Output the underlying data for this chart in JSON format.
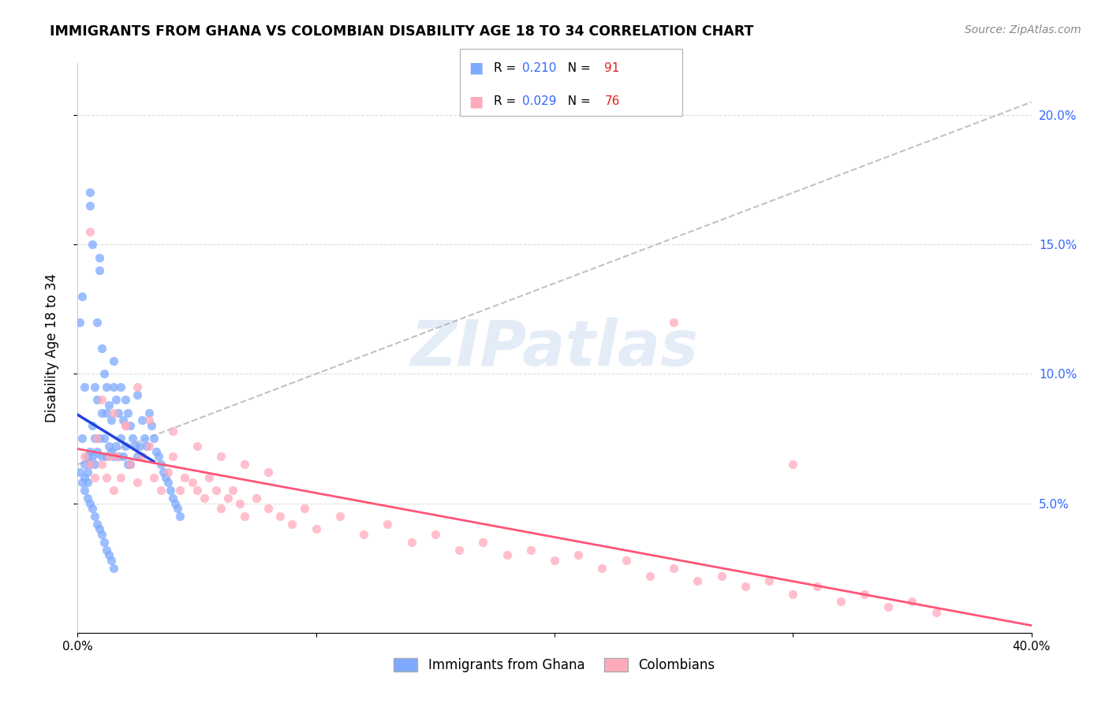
{
  "title": "IMMIGRANTS FROM GHANA VS COLOMBIAN DISABILITY AGE 18 TO 34 CORRELATION CHART",
  "source": "Source: ZipAtlas.com",
  "ylabel": "Disability Age 18 to 34",
  "xlim": [
    0.0,
    0.4
  ],
  "ylim": [
    0.0,
    0.22
  ],
  "xticks": [
    0.0,
    0.1,
    0.2,
    0.3,
    0.4
  ],
  "xticklabels": [
    "0.0%",
    "",
    "",
    "",
    "40.0%"
  ],
  "yticks": [
    0.05,
    0.1,
    0.15,
    0.2
  ],
  "ytick_labels": [
    "5.0%",
    "10.0%",
    "15.0%",
    "20.0%"
  ],
  "ghana_color": "#7eaaff",
  "colombian_color": "#ffaabb",
  "ghana_line_color": "#2244dd",
  "colombian_line_color": "#ff5577",
  "dashed_line_color": "#bbbbbb",
  "R_ghana": 0.21,
  "N_ghana": 91,
  "R_colombian": 0.029,
  "N_colombian": 76,
  "watermark_text": "ZIPatlas",
  "legend_label_ghana": "Immigrants from Ghana",
  "legend_label_colombian": "Colombians",
  "r_color": "#3366ff",
  "n_color": "#dd2222",
  "ghana_x": [
    0.001,
    0.002,
    0.002,
    0.003,
    0.003,
    0.003,
    0.004,
    0.004,
    0.004,
    0.005,
    0.005,
    0.005,
    0.005,
    0.006,
    0.006,
    0.006,
    0.007,
    0.007,
    0.007,
    0.008,
    0.008,
    0.008,
    0.009,
    0.009,
    0.009,
    0.01,
    0.01,
    0.01,
    0.011,
    0.011,
    0.012,
    0.012,
    0.012,
    0.013,
    0.013,
    0.014,
    0.014,
    0.015,
    0.015,
    0.015,
    0.016,
    0.016,
    0.017,
    0.017,
    0.018,
    0.018,
    0.019,
    0.019,
    0.02,
    0.02,
    0.021,
    0.021,
    0.022,
    0.022,
    0.023,
    0.024,
    0.025,
    0.025,
    0.026,
    0.027,
    0.028,
    0.029,
    0.03,
    0.031,
    0.032,
    0.033,
    0.034,
    0.035,
    0.036,
    0.037,
    0.038,
    0.039,
    0.04,
    0.041,
    0.042,
    0.043,
    0.001,
    0.002,
    0.003,
    0.004,
    0.005,
    0.006,
    0.007,
    0.008,
    0.009,
    0.01,
    0.011,
    0.012,
    0.013,
    0.014,
    0.015
  ],
  "ghana_y": [
    0.12,
    0.13,
    0.075,
    0.095,
    0.065,
    0.06,
    0.068,
    0.062,
    0.058,
    0.17,
    0.165,
    0.07,
    0.065,
    0.15,
    0.08,
    0.068,
    0.095,
    0.075,
    0.065,
    0.12,
    0.09,
    0.07,
    0.145,
    0.14,
    0.075,
    0.11,
    0.085,
    0.068,
    0.1,
    0.075,
    0.095,
    0.085,
    0.068,
    0.088,
    0.072,
    0.082,
    0.07,
    0.105,
    0.095,
    0.068,
    0.09,
    0.072,
    0.085,
    0.068,
    0.095,
    0.075,
    0.082,
    0.068,
    0.09,
    0.072,
    0.085,
    0.065,
    0.08,
    0.065,
    0.075,
    0.072,
    0.092,
    0.068,
    0.072,
    0.082,
    0.075,
    0.072,
    0.085,
    0.08,
    0.075,
    0.07,
    0.068,
    0.065,
    0.062,
    0.06,
    0.058,
    0.055,
    0.052,
    0.05,
    0.048,
    0.045,
    0.062,
    0.058,
    0.055,
    0.052,
    0.05,
    0.048,
    0.045,
    0.042,
    0.04,
    0.038,
    0.035,
    0.032,
    0.03,
    0.028,
    0.025
  ],
  "colombian_x": [
    0.003,
    0.005,
    0.007,
    0.008,
    0.01,
    0.012,
    0.013,
    0.015,
    0.016,
    0.018,
    0.02,
    0.022,
    0.025,
    0.027,
    0.03,
    0.032,
    0.035,
    0.038,
    0.04,
    0.043,
    0.045,
    0.048,
    0.05,
    0.053,
    0.055,
    0.058,
    0.06,
    0.063,
    0.065,
    0.068,
    0.07,
    0.075,
    0.08,
    0.085,
    0.09,
    0.095,
    0.1,
    0.11,
    0.12,
    0.13,
    0.14,
    0.15,
    0.16,
    0.17,
    0.18,
    0.19,
    0.2,
    0.21,
    0.22,
    0.23,
    0.24,
    0.25,
    0.26,
    0.27,
    0.28,
    0.29,
    0.3,
    0.31,
    0.32,
    0.33,
    0.34,
    0.35,
    0.36,
    0.005,
    0.01,
    0.015,
    0.02,
    0.025,
    0.03,
    0.04,
    0.05,
    0.06,
    0.07,
    0.08,
    0.25,
    0.3
  ],
  "colombian_y": [
    0.068,
    0.065,
    0.06,
    0.075,
    0.065,
    0.06,
    0.068,
    0.055,
    0.068,
    0.06,
    0.08,
    0.065,
    0.058,
    0.068,
    0.072,
    0.06,
    0.055,
    0.062,
    0.068,
    0.055,
    0.06,
    0.058,
    0.055,
    0.052,
    0.06,
    0.055,
    0.048,
    0.052,
    0.055,
    0.05,
    0.045,
    0.052,
    0.048,
    0.045,
    0.042,
    0.048,
    0.04,
    0.045,
    0.038,
    0.042,
    0.035,
    0.038,
    0.032,
    0.035,
    0.03,
    0.032,
    0.028,
    0.03,
    0.025,
    0.028,
    0.022,
    0.025,
    0.02,
    0.022,
    0.018,
    0.02,
    0.015,
    0.018,
    0.012,
    0.015,
    0.01,
    0.012,
    0.008,
    0.155,
    0.09,
    0.085,
    0.08,
    0.095,
    0.082,
    0.078,
    0.072,
    0.068,
    0.065,
    0.062,
    0.12,
    0.065
  ]
}
